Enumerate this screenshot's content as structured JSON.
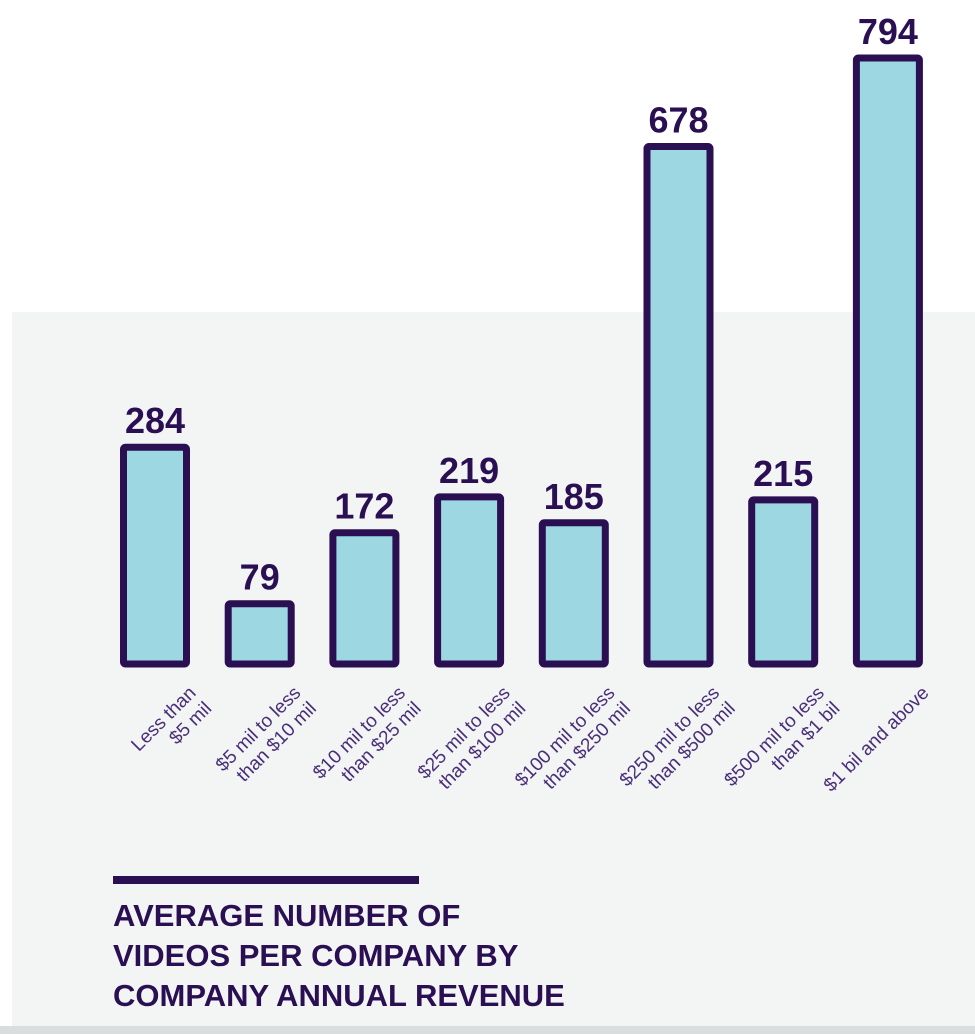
{
  "colors": {
    "bar_fill": "#9dd7e2",
    "bar_stroke": "#2a0f52",
    "text": "#2a0f52",
    "tick_text": "#4a2f78",
    "panel_background": "#f3f5f5"
  },
  "caption": {
    "lines": [
      "AVERAGE NUMBER OF",
      "VIDEOS PER COMPANY BY",
      "COMPANY ANNUAL REVENUE"
    ]
  },
  "chart_data": {
    "type": "bar",
    "title": "",
    "xlabel": "",
    "ylabel": "",
    "ylim": [
      0,
      794
    ],
    "grid": false,
    "categories": [
      [
        "Less than",
        "$5 mil"
      ],
      [
        "$5 mil to less",
        "than $10 mil"
      ],
      [
        "$10 mil to less",
        "than $25 mil"
      ],
      [
        "$25 mil to less",
        "than $100 mil"
      ],
      [
        "$100 mil to less",
        "than $250 mil"
      ],
      [
        "$250 mil to less",
        "than $500 mil"
      ],
      [
        "$500 mil to less",
        "than $1 bil"
      ],
      [
        "$1 bil and above"
      ]
    ],
    "values": [
      284,
      79,
      172,
      219,
      185,
      678,
      215,
      794
    ],
    "data_labels": [
      "284",
      "79",
      "172",
      "219",
      "185",
      "678",
      "215",
      "794"
    ]
  }
}
